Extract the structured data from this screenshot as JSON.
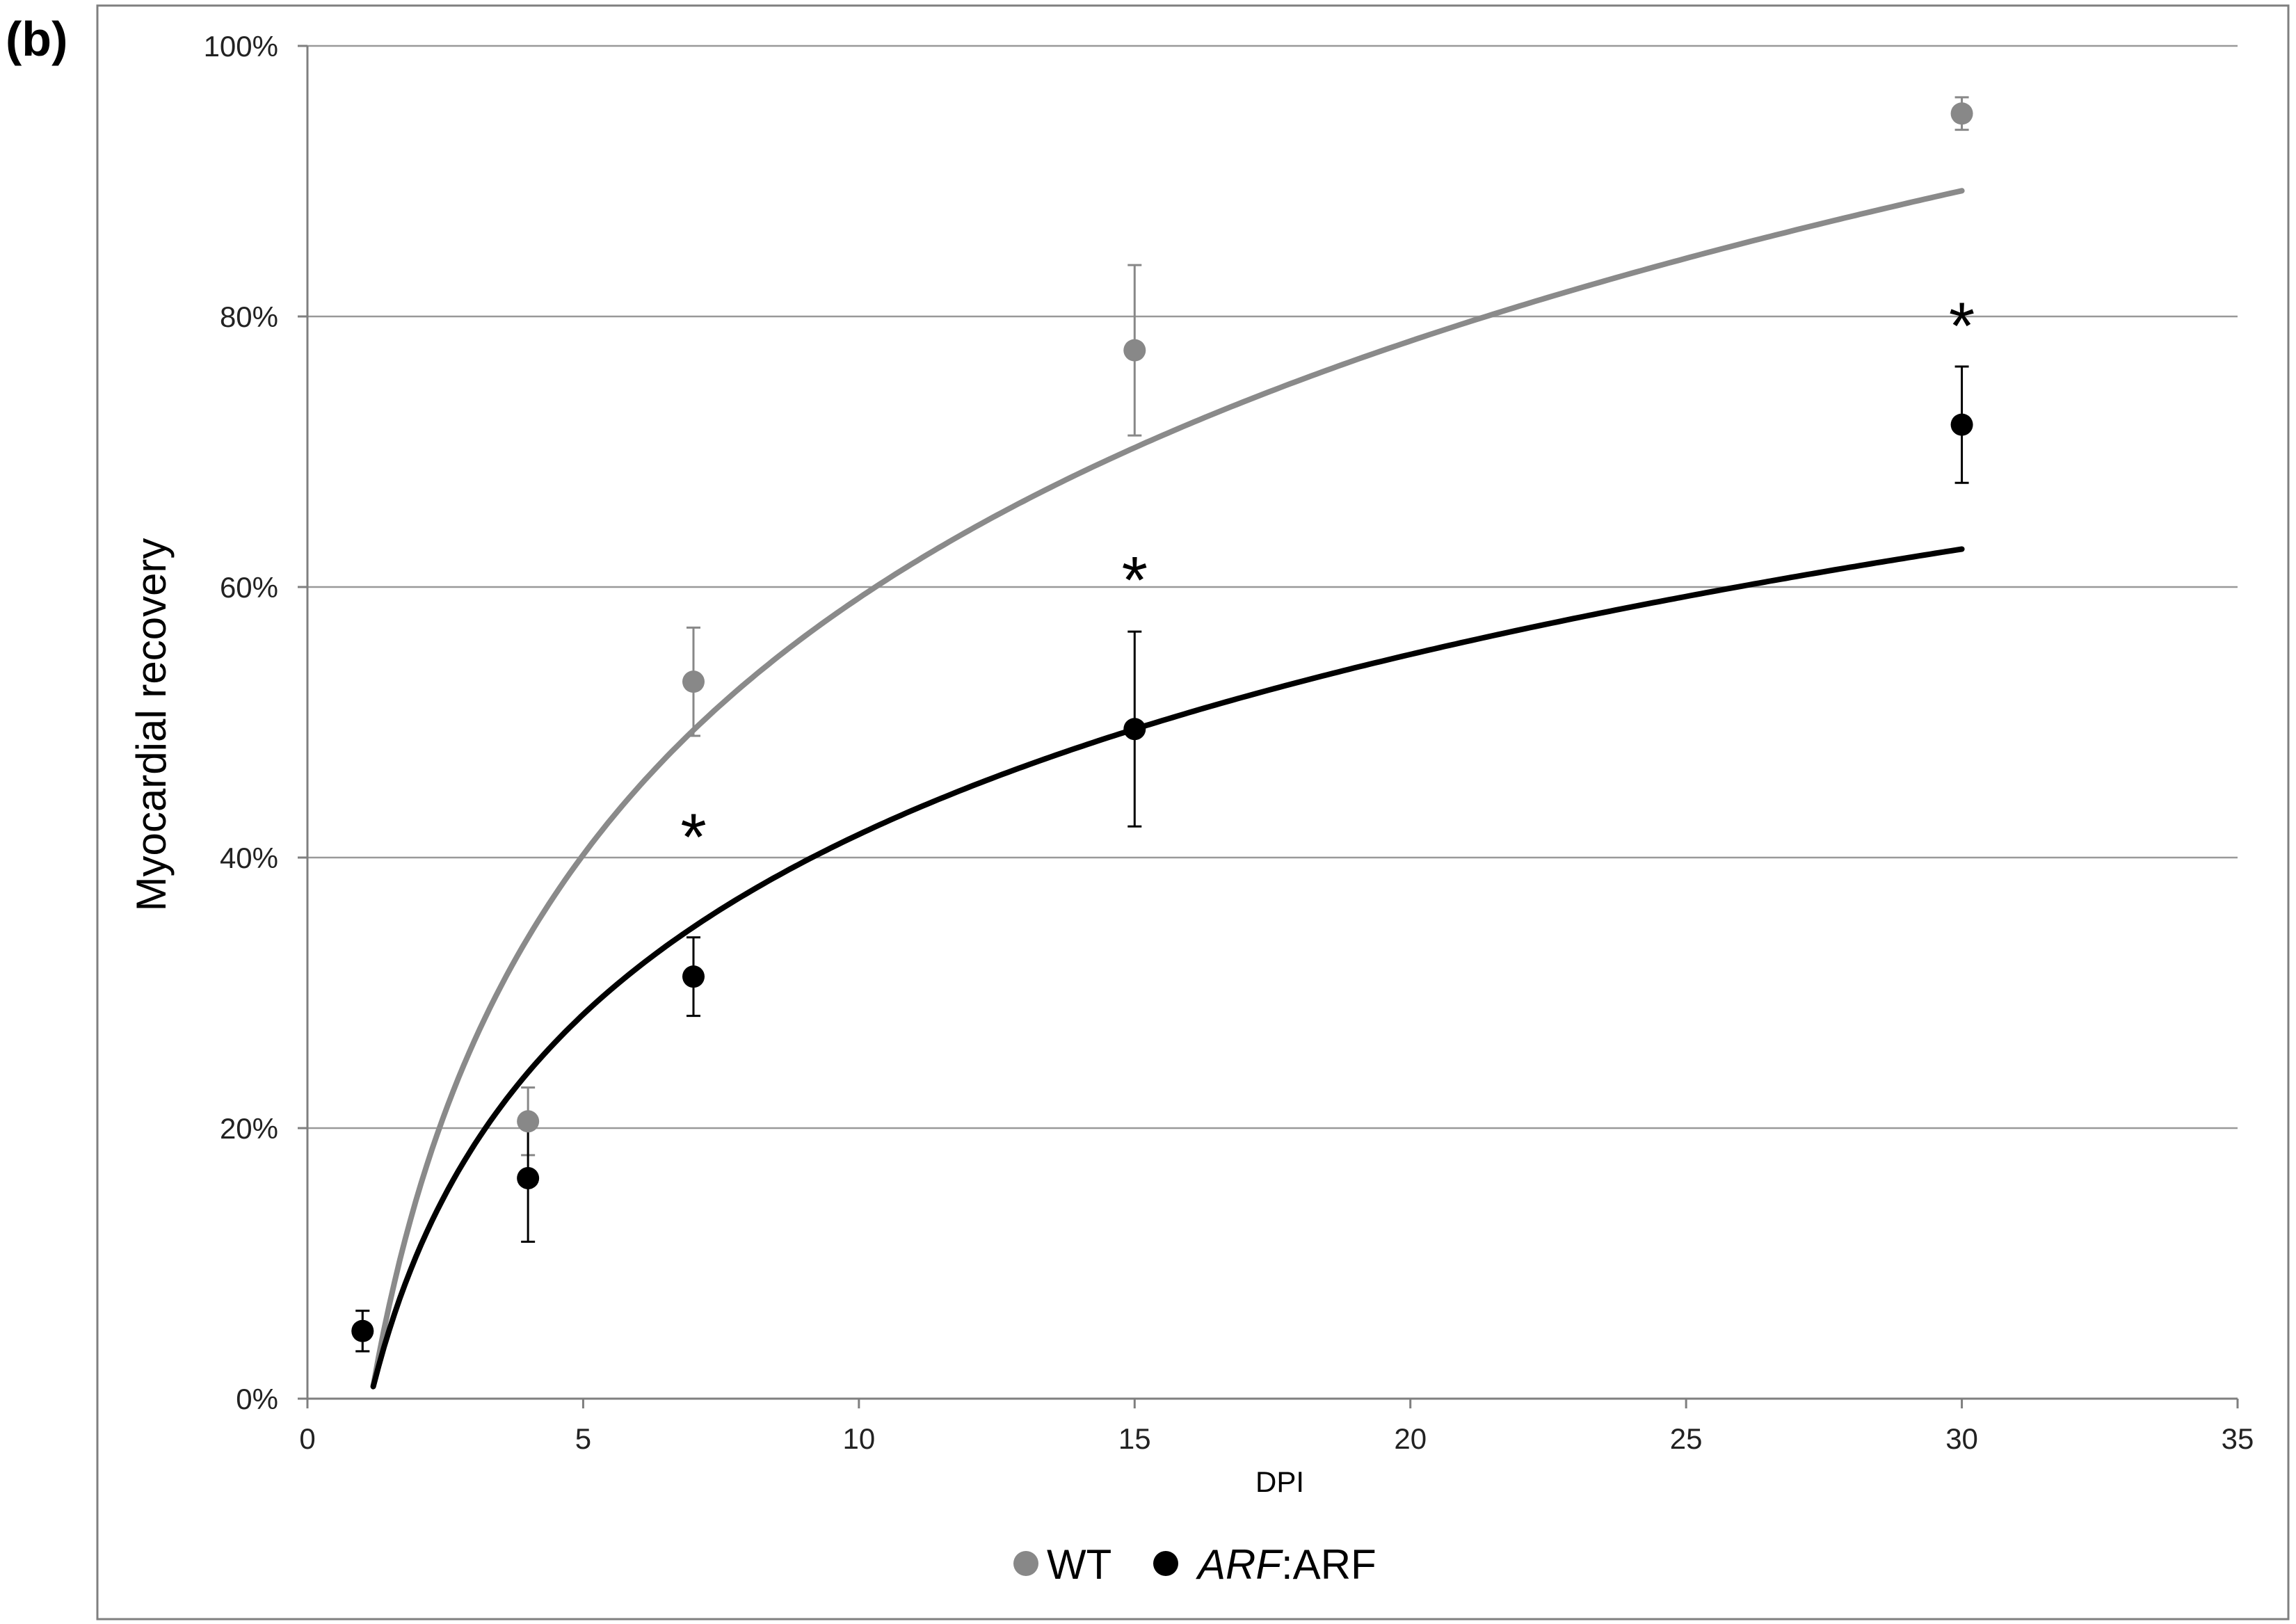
{
  "panel_label": "(b)",
  "chart_data": {
    "type": "scatter",
    "xlabel": "DPI",
    "ylabel": "Myocardial recovery",
    "xlim": [
      0,
      35
    ],
    "ylim": [
      0,
      100
    ],
    "x_ticks": [
      0,
      5,
      10,
      15,
      20,
      25,
      30,
      35
    ],
    "y_ticks": [
      0,
      20,
      40,
      60,
      80,
      100
    ],
    "y_tick_labels": [
      "0%",
      "20%",
      "40%",
      "60%",
      "80%",
      "100%"
    ],
    "grid": "horizontal",
    "legend_position": "bottom",
    "series": [
      {
        "name": "WT",
        "color": "#888888",
        "x": [
          1,
          4,
          7,
          15,
          30
        ],
        "y": [
          5,
          20.5,
          53,
          77.5,
          95
        ],
        "err": [
          1.5,
          2.5,
          4,
          6.3,
          1.2
        ],
        "trend": {
          "type": "logarithmic",
          "a": 27.4,
          "b": -3.9
        }
      },
      {
        "name": "ARF:ARF",
        "name_italic_part": "ARF",
        "name_rest": ":ARF",
        "color": "#000000",
        "x": [
          1,
          4,
          7,
          15,
          30
        ],
        "y": [
          5,
          16.3,
          31.2,
          49.5,
          72
        ],
        "err": [
          1.5,
          4.7,
          2.9,
          7.2,
          4.3
        ],
        "trend": {
          "type": "logarithmic",
          "a": 19.2,
          "b": -2.5
        }
      }
    ],
    "annotations": [
      {
        "text": "*",
        "x": 7,
        "y": 43
      },
      {
        "text": "*",
        "x": 15,
        "y": 62
      },
      {
        "text": "*",
        "x": 30,
        "y": 80.8
      }
    ]
  }
}
